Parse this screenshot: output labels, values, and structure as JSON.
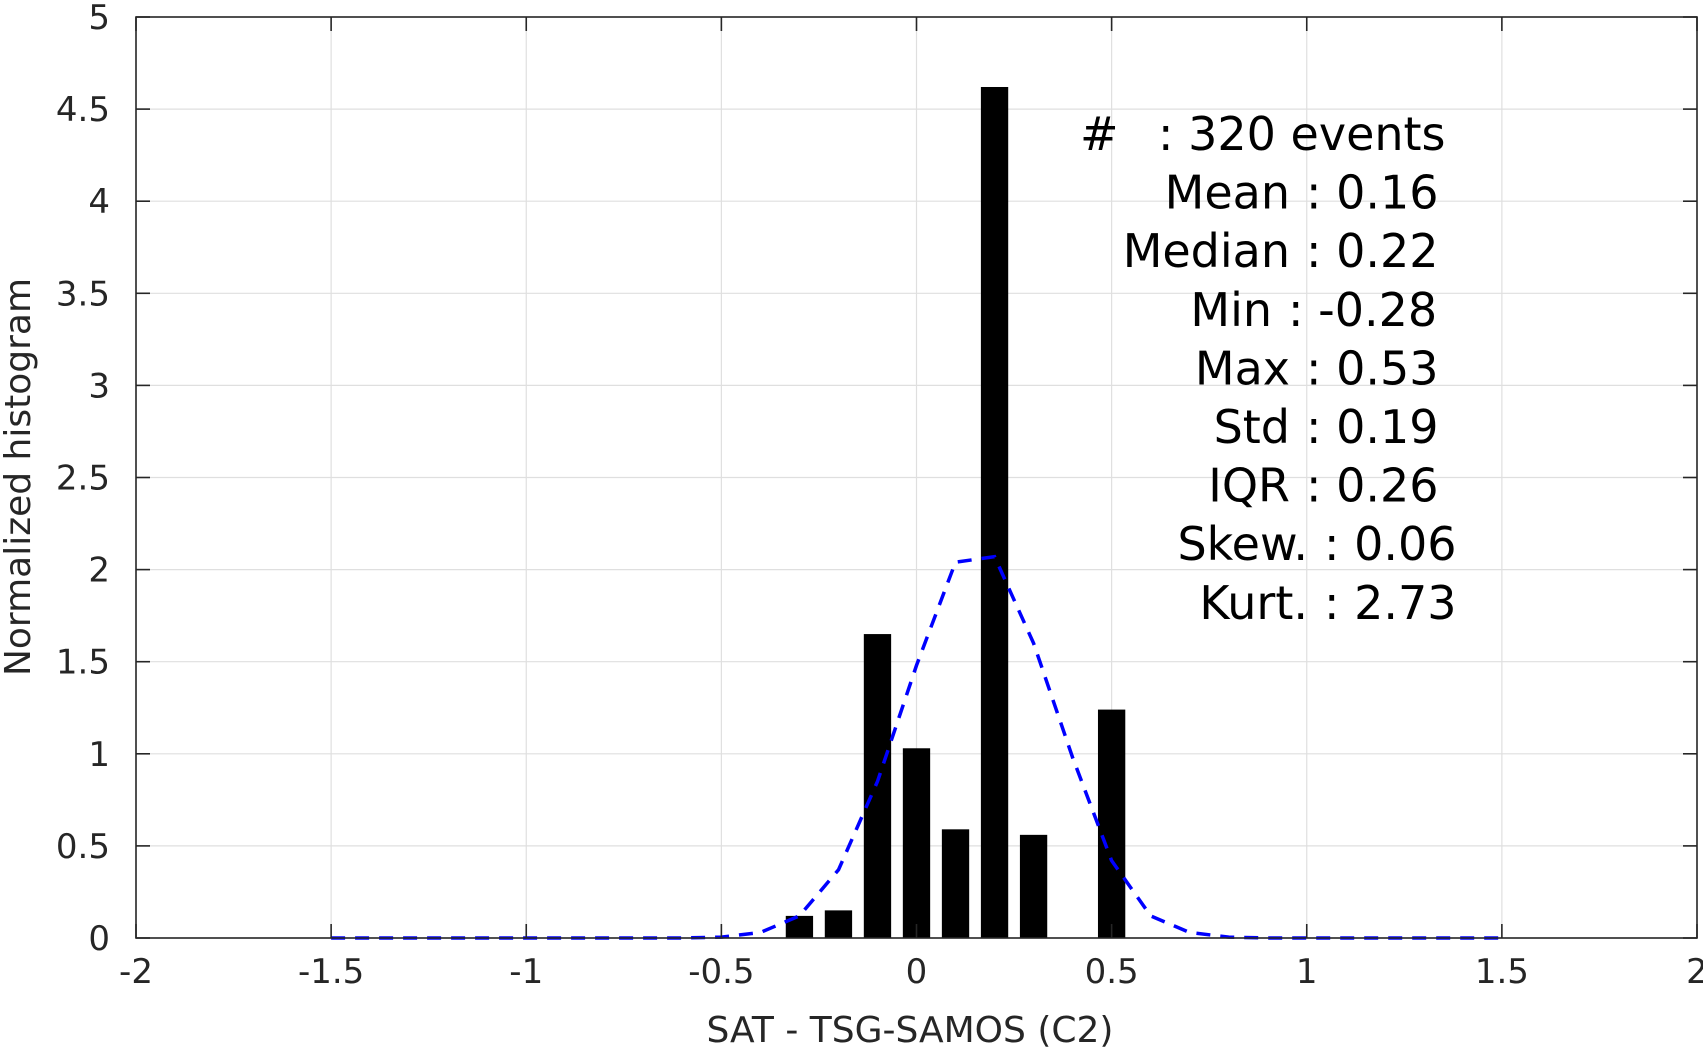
{
  "chart_data": {
    "type": "bar",
    "xlabel": "SAT - TSG-SAMOS (C2)",
    "ylabel": "Normalized histogram",
    "xlim": [
      -2,
      2
    ],
    "ylim": [
      0,
      5
    ],
    "x_ticks": [
      -2,
      -1.5,
      -1,
      -0.5,
      0,
      0.5,
      1,
      1.5,
      2
    ],
    "x_tick_labels": [
      "-2",
      "-1.5",
      "-1",
      "-0.5",
      "0",
      "0.5",
      "1",
      "1.5",
      "2"
    ],
    "y_ticks": [
      0,
      0.5,
      1,
      1.5,
      2,
      2.5,
      3,
      3.5,
      4,
      4.5,
      5
    ],
    "y_tick_labels": [
      "0",
      "0.5",
      "1",
      "1.5",
      "2",
      "2.5",
      "3",
      "3.5",
      "4",
      "4.5",
      "5"
    ],
    "grid": true,
    "bars": {
      "centers": [
        -0.3,
        -0.2,
        -0.1,
        0.0,
        0.1,
        0.2,
        0.3,
        0.4,
        0.5
      ],
      "values": [
        0.12,
        0.15,
        1.65,
        1.03,
        0.59,
        4.62,
        0.56,
        0.0,
        1.24
      ],
      "width": 0.07,
      "color": "#000000"
    },
    "fit_curve": {
      "style": "dashed",
      "color": "#0000ff",
      "x": [
        -1.5,
        -1.4,
        -1.3,
        -1.2,
        -1.1,
        -1.0,
        -0.9,
        -0.8,
        -0.7,
        -0.6,
        -0.5,
        -0.4,
        -0.3,
        -0.2,
        -0.1,
        0.0,
        0.1,
        0.2,
        0.3,
        0.4,
        0.5,
        0.6,
        0.7,
        0.8,
        0.9,
        1.0,
        1.1,
        1.2,
        1.3,
        1.4,
        1.5
      ],
      "y": [
        0,
        0,
        0,
        0,
        0,
        0,
        0,
        0,
        0,
        0,
        0.005,
        0.03,
        0.12,
        0.37,
        0.85,
        1.48,
        2.04,
        2.07,
        1.6,
        0.98,
        0.42,
        0.12,
        0.03,
        0.005,
        0,
        0,
        0,
        0,
        0,
        0,
        0
      ]
    },
    "annotations": [
      {
        "label": "#",
        "value": ": 320 events"
      },
      {
        "label": "Mean",
        "value": ": 0.16"
      },
      {
        "label": "Median",
        "value": ": 0.22"
      },
      {
        "label": "Min",
        "value": ": -0.28"
      },
      {
        "label": "Max",
        "value": ": 0.53"
      },
      {
        "label": "Std",
        "value": ": 0.19"
      },
      {
        "label": "IQR",
        "value": ": 0.26"
      },
      {
        "label": "Skew.",
        "value": ": 0.06"
      },
      {
        "label": "Kurt.",
        "value": ": 2.73"
      }
    ]
  }
}
